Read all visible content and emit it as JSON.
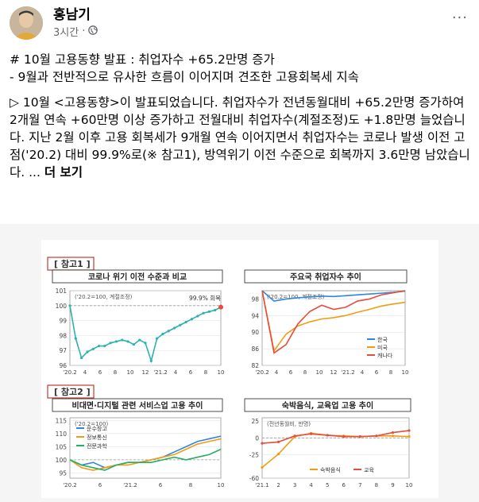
{
  "post": {
    "author": "홍남기",
    "time": "3시간",
    "dot": "·",
    "more": "···",
    "title_line": "# 10월 고용동향 발표 : 취업자수 +65.2만명 증가",
    "subtitle_line": "- 9월과 전반적으로 유사한 흐름이 이어지며 견조한 고용회복세 지속",
    "body": "▷ 10월 <고용동향>이 발표되었습니다. 취업자수가 전년동월대비 +65.2만명 증가하여 2개월 연속 +60만명 이상 증가하고 전월대비 취업자수(계절조정)도 +1.8만명 늘었습니다. 지난 2월 이후 고용 회복세가 9개월 연속 이어지면서 취업자수는 코로나 발생 이전 고점('20.2) 대비 99.9%로(※ 참고1), 방역위기 이전 수준으로 회복까지 3.6만명 남았습니다. ...",
    "see_more": "더 보기"
  },
  "figure": {
    "section1_tag": "[ 참고1 ]",
    "section2_tag": "[ 참고2 ]",
    "colors": {
      "tag_border": "#c0392b",
      "teal": "#2ab3b0",
      "orange": "#f39c12",
      "blue": "#2e86de",
      "red": "#e74c3c",
      "green": "#27ae60",
      "black": "#333333"
    },
    "charts": [
      {
        "title": "코로나 위기 이전 수준과 비교",
        "note": "('20.2=100, 계절조정)",
        "annotation": "99.9% 회복",
        "yticks": [
          "101",
          "100",
          "99",
          "98",
          "97",
          "96"
        ],
        "xticks": [
          "'20.2",
          "4",
          "6",
          "8",
          "10",
          "12",
          "'21.2",
          "4",
          "6",
          "8",
          "10"
        ],
        "ylim": [
          96,
          101
        ],
        "series": [
          {
            "values": [
              100,
              97.8,
              96.5,
              96.9,
              97.1,
              97.3,
              97.3,
              97.5,
              97.6,
              97.7,
              97.6,
              97.4,
              97.7,
              97.5,
              96.3,
              97.8,
              98.1,
              98.3,
              98.5,
              98.7,
              98.9,
              99.1,
              99.3,
              99.5,
              99.6,
              99.7,
              99.9
            ]
          }
        ]
      },
      {
        "title": "주요국 취업자수 추이",
        "note": "('20.2=100, 계절조정)",
        "yticks": [
          "98",
          "94",
          "90",
          "86",
          "82"
        ],
        "xticks": [
          "'20.2",
          "4",
          "6",
          "8",
          "10",
          "12",
          "'21.2",
          "4",
          "6",
          "8",
          "10"
        ],
        "ylim": [
          82,
          100
        ],
        "legend": [
          "한국",
          "미국",
          "캐나다"
        ],
        "series": [
          {
            "name": "한국",
            "values": [
              100,
              97.5,
              98.0,
              98.3,
              98.5,
              98.7,
              98.6,
              98.8,
              99.0,
              99.2,
              99.4,
              99.6,
              99.9
            ]
          },
          {
            "name": "미국",
            "values": [
              100,
              85.5,
              89.5,
              91.5,
              92.5,
              93.2,
              93.5,
              94.0,
              94.8,
              95.5,
              96.3,
              96.8,
              97.2
            ]
          },
          {
            "name": "캐나다",
            "values": [
              100,
              85.0,
              87.0,
              92.0,
              95.0,
              96.5,
              95.5,
              96.0,
              97.5,
              98.0,
              99.0,
              99.5,
              100.0
            ]
          }
        ]
      },
      {
        "title": "비대면·디지털 관련 서비스업 고용 추이",
        "note": "('20.2=100)",
        "yticks": [
          "115",
          "110",
          "105",
          "100",
          "95"
        ],
        "xticks": [
          "'20.2",
          "6",
          "'21.2",
          "6",
          "8",
          "10"
        ],
        "ylim": [
          93,
          116
        ],
        "legend": [
          "운수창고",
          "정보통신",
          "전문과학"
        ],
        "series": [
          {
            "name": "운수창고",
            "values": [
              100,
              98,
              99,
              97,
              98,
              99,
              99,
              100,
              101,
              103,
              105,
              107,
              108,
              109
            ]
          },
          {
            "name": "정보통신",
            "values": [
              100,
              97,
              96,
              97,
              98,
              98,
              99,
              100,
              101,
              102,
              104,
              106,
              107,
              108
            ]
          },
          {
            "name": "전문과학",
            "values": [
              100,
              98,
              97,
              96,
              98,
              99,
              99,
              99,
              100,
              101,
              100,
              101,
              102,
              104
            ]
          }
        ]
      },
      {
        "title": "숙박음식, 교육업 고용 추이",
        "note": "(전년동월비, 만명)",
        "yticks": [
          "25",
          "0",
          "-25",
          "-60"
        ],
        "xticks": [
          "'21.1",
          "2",
          "3",
          "4",
          "5",
          "6",
          "7",
          "8",
          "9",
          "10"
        ],
        "ylim": [
          -60,
          30
        ],
        "legend": [
          "숙박음식",
          "교육"
        ],
        "series": [
          {
            "name": "숙박음식",
            "values": [
              -44,
              -24,
              2,
              7,
              4,
              3,
              2,
              3,
              3,
              2
            ]
          },
          {
            "name": "교육",
            "values": [
              -8,
              -6,
              3,
              6,
              4,
              2,
              2,
              3,
              8,
              11
            ]
          }
        ]
      }
    ]
  }
}
